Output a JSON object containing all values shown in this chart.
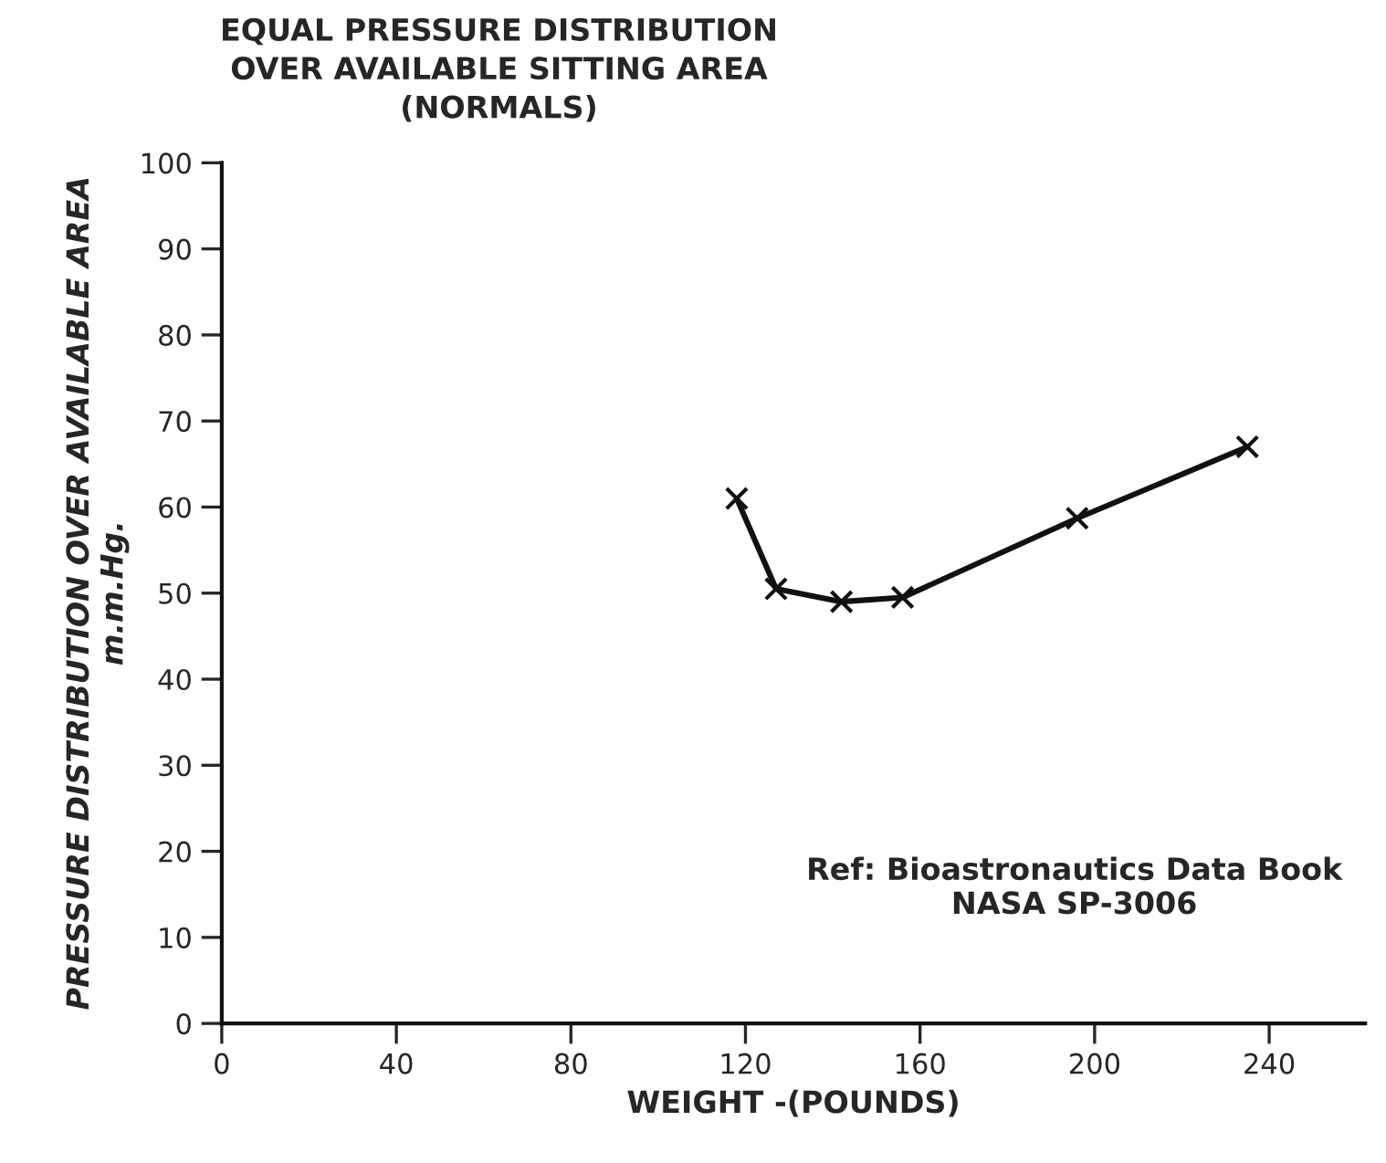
{
  "chart_data": {
    "type": "line",
    "title": "EQUAL PRESSURE DISTRIBUTION\nOVER AVAILABLE SITTING AREA\n(NORMALS)",
    "xlabel": "WEIGHT -(POUNDS)",
    "ylabel": "PRESSURE DISTRIBUTION OVER AVAILABLE AREA\nm.m.Hg.",
    "x": [
      118,
      127,
      142,
      156,
      196,
      235
    ],
    "series": [
      {
        "color": "#111111",
        "values": [
          61,
          50.5,
          49,
          49.5,
          58.7,
          67
        ]
      }
    ],
    "xlim": [
      0,
      262
    ],
    "xticks": [
      0,
      40,
      80,
      120,
      160,
      200,
      240
    ],
    "ylim": [
      0,
      100
    ],
    "yticks": [
      0,
      10,
      20,
      30,
      40,
      50,
      60,
      70,
      80,
      90,
      100
    ],
    "marker": "cross",
    "line_style": "solid",
    "grid": false,
    "legend": false,
    "annotations": [
      {
        "text": "Ref: Bioastronautics Data Book\nNASA SP-3006"
      }
    ]
  }
}
